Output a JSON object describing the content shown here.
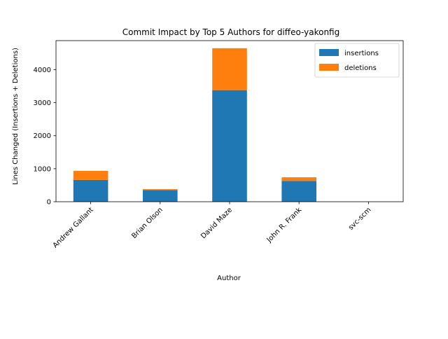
{
  "chart_data": {
    "type": "bar",
    "stacked": true,
    "title": "Commit Impact by Top 5 Authors for diffeo-yakonfig",
    "xlabel": "Author",
    "ylabel": "Lines Changed (Insertions + Deletions)",
    "categories": [
      "Andrew Gallant",
      "Brian Olson",
      "David Maze",
      "John R. Frank",
      "svc-scm"
    ],
    "series": [
      {
        "name": "insertions",
        "color": "#1f77b4",
        "values": [
          660,
          355,
          3380,
          630,
          0
        ]
      },
      {
        "name": "deletions",
        "color": "#ff7f0e",
        "values": [
          275,
          25,
          1270,
          110,
          0
        ]
      }
    ],
    "ylim": [
      0,
      4880
    ],
    "yticks": [
      0,
      1000,
      2000,
      3000,
      4000
    ],
    "grid": false,
    "legend_position": "top-right"
  }
}
